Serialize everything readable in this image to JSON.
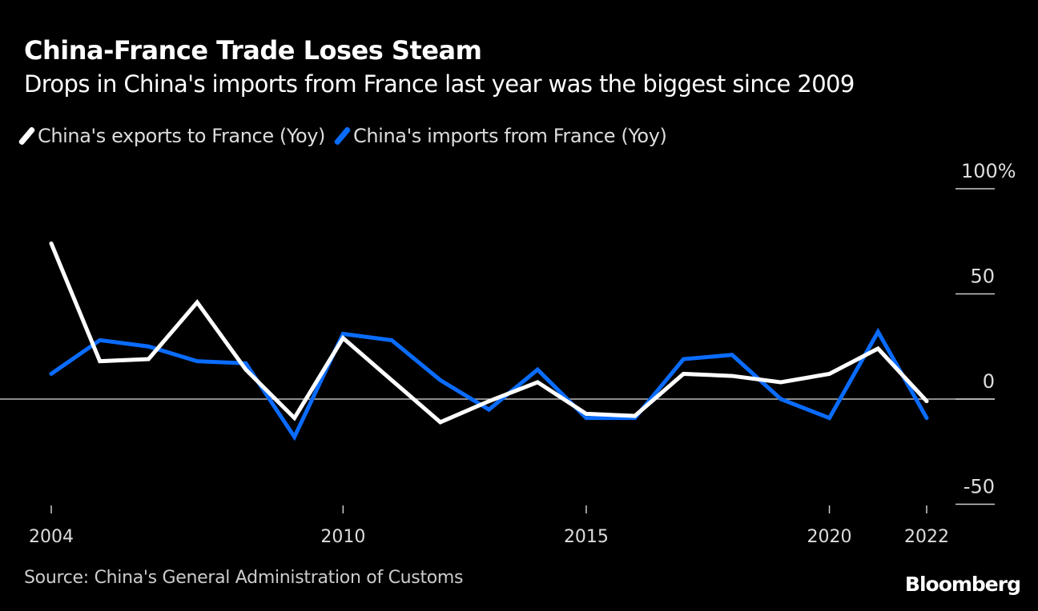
{
  "title": "China-France Trade Loses Steam",
  "subtitle": "Drops in China's imports from France last year was the biggest since 2009",
  "source": "Source: China's General Administration of Customs",
  "logo": "Bloomberg",
  "chart_data": {
    "type": "line",
    "title": "China-France Trade Loses Steam",
    "x": [
      2004,
      2005,
      2006,
      2007,
      2008,
      2009,
      2010,
      2011,
      2012,
      2013,
      2014,
      2015,
      2016,
      2017,
      2018,
      2019,
      2020,
      2021,
      2022
    ],
    "series": [
      {
        "name": "China's exports to France (Yoy)",
        "color": "#ffffff",
        "values": [
          74,
          18,
          19,
          46,
          14,
          -9,
          29,
          9,
          -11,
          -1,
          8,
          -7,
          -8,
          12,
          11,
          8,
          12,
          24,
          -1
        ]
      },
      {
        "name": "China's imports from France (Yoy)",
        "color": "#0a6cff",
        "values": [
          12,
          28,
          25,
          18,
          17,
          -18,
          31,
          28,
          9,
          -5,
          14,
          -9,
          -9,
          19,
          21,
          0,
          -9,
          32,
          -9
        ]
      }
    ],
    "xticks": [
      2004,
      2010,
      2015,
      2020,
      2022
    ],
    "yticks": [
      {
        "value": 100,
        "label": "100%"
      },
      {
        "value": 50,
        "label": "50"
      },
      {
        "value": 0,
        "label": "0"
      },
      {
        "value": -50,
        "label": "-50"
      }
    ],
    "xlim": [
      2004,
      2022
    ],
    "ylim": [
      -50,
      100
    ],
    "legend": "top-left",
    "grid": false,
    "y_axis_side": "right"
  }
}
